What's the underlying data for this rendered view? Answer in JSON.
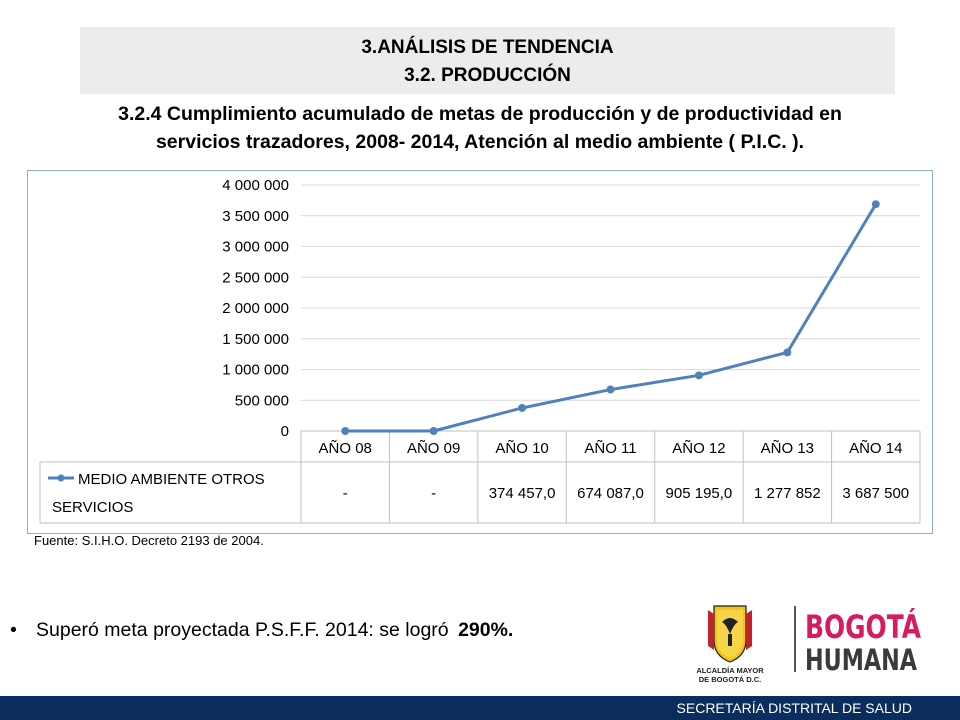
{
  "header": {
    "line1": "3.ANÁLISIS DE TENDENCIA",
    "line2": "3.2. PRODUCCIÓN"
  },
  "subtitle": {
    "line1": "3.2.4 Cumplimiento acumulado de metas de producción y de productividad en",
    "line2": "servicios trazadores, 2008- 2014, Atención al medio ambiente ( P.I.C. )."
  },
  "chart_data": {
    "type": "line",
    "categories": [
      "AÑO 08",
      "AÑO 09",
      "AÑO 10",
      "AÑO 11",
      "AÑO 12",
      "AÑO 13",
      "AÑO 14"
    ],
    "series": [
      {
        "name": "MEDIO AMBIENTE OTROS SERVICIOS",
        "values": [
          0,
          0,
          374457,
          674087,
          905195,
          1277852,
          3687500
        ],
        "table_labels": [
          "-",
          "-",
          "374 457,0",
          "674 087,0",
          "905 195,0",
          "1 277 852",
          "3 687 500"
        ],
        "color": "#4f81bd"
      }
    ],
    "ylim": [
      0,
      4000000
    ],
    "yticks": [
      0,
      500000,
      1000000,
      1500000,
      2000000,
      2500000,
      3000000,
      3500000,
      4000000
    ],
    "ytick_labels": [
      "0",
      "500 000",
      "1 000 000",
      "1 500 000",
      "2 000 000",
      "2 500 000",
      "3 000 000",
      "3 500 000",
      "4 000 000"
    ],
    "grid": true,
    "legend": "data-table"
  },
  "source": "Fuente: S.I.H.O. Decreto 2193  de  2004.",
  "bullet": {
    "symbol": "•",
    "text": "Superó meta proyectada P.S.F.F. 2014: se logró ",
    "value": "290%."
  },
  "logos": {
    "alcaldia_line1": "ALCALDÍA MAYOR",
    "alcaldia_line2": "DE BOGOTÁ D.C.",
    "bogota_line1": "BOGOTÁ",
    "bogota_line2": "HUMANA"
  },
  "footer": {
    "text": "SECRETARÍA DISTRITAL DE SALUD",
    "color": "#0b2d5e"
  }
}
